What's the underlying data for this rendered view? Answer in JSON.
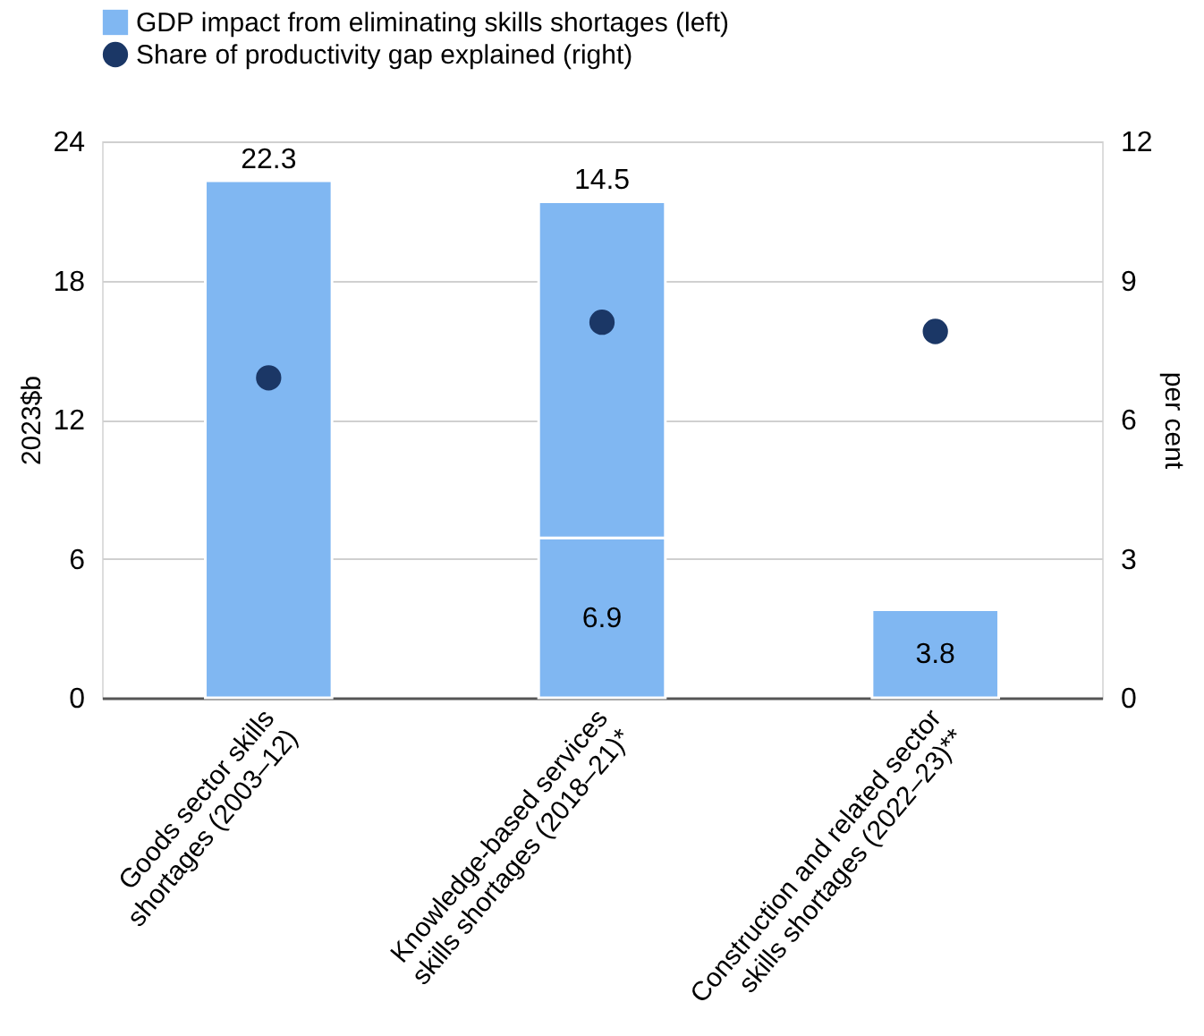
{
  "chart_data": {
    "type": "bar",
    "stacked": true,
    "categories": [
      "Goods sector skills shortages (2003–12)",
      "Knowledge-based services skills shortages (2018–21)*",
      "Construction and related sector skills shortages (2022–23)**"
    ],
    "series": [
      {
        "name": "GDP impact from eliminating skills shortages (left)",
        "color": "#80b7f2",
        "values": [
          22.3,
          6.9,
          3.8
        ],
        "value_labels": [
          "22.3",
          "6.9",
          "3.8"
        ]
      },
      {
        "color": "#80b7f2",
        "values": [
          null,
          14.5,
          null
        ],
        "value_labels": [
          null,
          "14.5",
          null
        ]
      },
      {
        "name": "Share of productivity gap explained (right)",
        "type": "scatter",
        "axis": "y2",
        "color": "#1b3766",
        "marker": "circle",
        "values": [
          6.9,
          8.1,
          7.9
        ]
      }
    ],
    "ylabel": "2023$b",
    "y2label": "per cent",
    "ylim": [
      0,
      24
    ],
    "yticks": [
      0,
      6,
      12,
      18,
      24
    ],
    "y2lim": [
      0,
      12
    ],
    "y2ticks": [
      0,
      3,
      6,
      9,
      12
    ],
    "grid": "y",
    "legend": "top left"
  }
}
